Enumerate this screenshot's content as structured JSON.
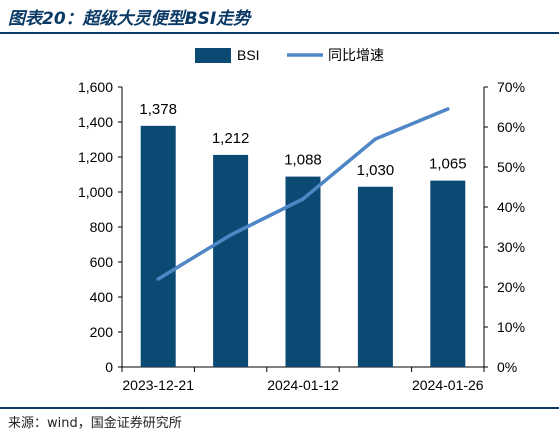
{
  "figure": {
    "title": "图表20：超级大灵便型BSI走势",
    "source": "来源：wind，国金证券研究所"
  },
  "colors": {
    "bar": "#0b4a73",
    "line": "#4f86c6",
    "rule": "#0b3a66"
  },
  "chart_data": {
    "type": "bar",
    "categories": [
      "2023-12-21",
      "",
      "2024-01-12",
      "",
      "2024-01-26"
    ],
    "x_tick_labels": [
      "2023-12-21",
      "2024-01-12",
      "2024-01-26"
    ],
    "series": [
      {
        "name": "BSI",
        "type": "bar",
        "axis": "left",
        "values": [
          1378,
          1212,
          1088,
          1030,
          1065
        ],
        "labels": [
          "1,378",
          "1,212",
          "1,088",
          "1,030",
          "1,065"
        ]
      },
      {
        "name": "同比增速",
        "type": "line",
        "axis": "right",
        "values": [
          22,
          33,
          42,
          57,
          64.5
        ]
      }
    ],
    "left_axis": {
      "ylim": [
        0,
        1600
      ],
      "ticks": [
        0,
        200,
        400,
        600,
        800,
        1000,
        1200,
        1400,
        1600
      ],
      "tick_labels": [
        "0",
        "200",
        "400",
        "600",
        "800",
        "1,000",
        "1,200",
        "1,400",
        "1,600"
      ]
    },
    "right_axis": {
      "ylim": [
        0,
        70
      ],
      "ticks": [
        0,
        10,
        20,
        30,
        40,
        50,
        60,
        70
      ],
      "tick_labels": [
        "0%",
        "10%",
        "20%",
        "30%",
        "40%",
        "50%",
        "60%",
        "70%"
      ]
    },
    "legend": {
      "position": "top-center",
      "entries": [
        "BSI",
        "同比增速"
      ]
    },
    "grid": false
  }
}
